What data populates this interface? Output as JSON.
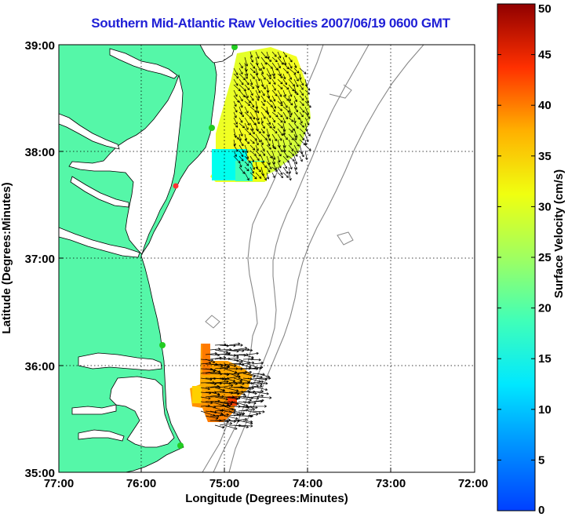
{
  "title": "Southern Mid-Atlantic Raw Velocities 2007/06/19 0600 GMT",
  "map": {
    "xlabel": "Longitude (Degrees:Minutes)",
    "ylabel": "Latitude (Degrees:Minutes)",
    "x_ticks": [
      "77:00",
      "76:00",
      "75:00",
      "74:00",
      "73:00",
      "72:00"
    ],
    "y_ticks": [
      "39:00",
      "38:00",
      "37:00",
      "36:00",
      "35:00"
    ],
    "lon_range": [
      -77,
      -72
    ],
    "lat_range": [
      35,
      39
    ],
    "grid": "dotted"
  },
  "colorbar": {
    "label": "Surface Velocity (cm/s)",
    "ticks": [
      "0",
      "5",
      "10",
      "15",
      "20",
      "25",
      "30",
      "35",
      "40",
      "45",
      "50"
    ],
    "range": [
      0,
      50
    ],
    "colormap": "jet"
  },
  "colors": {
    "land": "#55f7a8",
    "ocean": "#ffffff",
    "title": "#1f1fd6",
    "site_marker": "#22cc22",
    "site_marker_alt": "#ff3333"
  }
}
